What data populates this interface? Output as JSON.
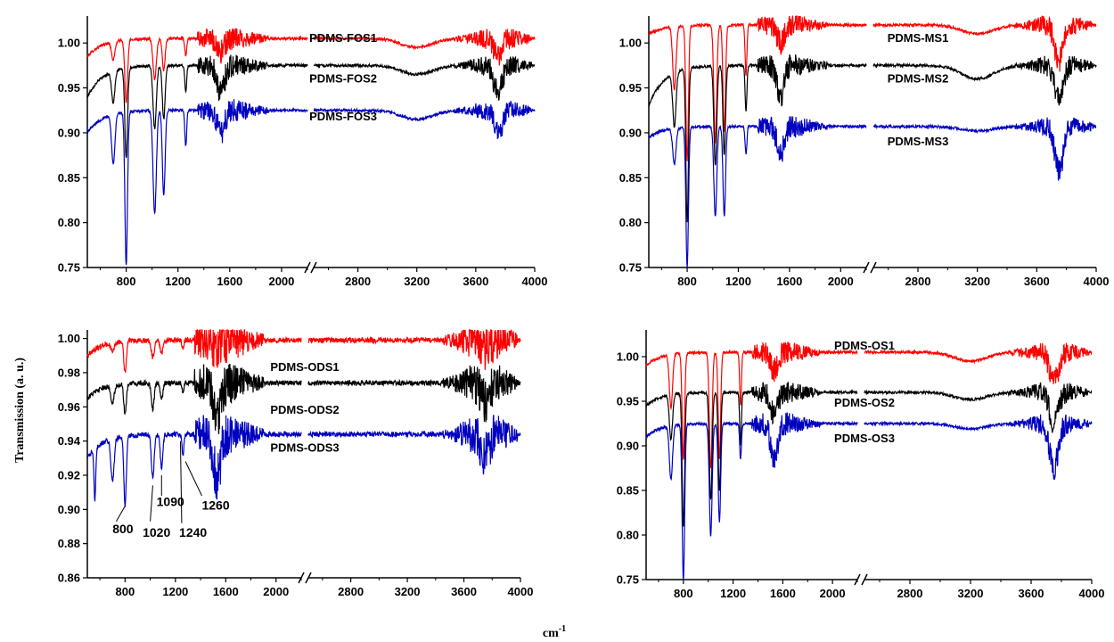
{
  "figure": {
    "ylabel": "Transmission (a. u.)",
    "xlabel_base": "cm",
    "xlabel_sup": "-1"
  },
  "chart_data": [
    {
      "type": "line",
      "panel": "top-left",
      "xlim": [
        500,
        4000
      ],
      "ylim": [
        0.75,
        1.03
      ],
      "axis_break": [
        2200,
        2500
      ],
      "xticks": [
        800,
        1200,
        1600,
        2000,
        2800,
        3200,
        3600,
        4000
      ],
      "yticks": [
        "0.75",
        "0.80",
        "0.85",
        "0.90",
        "0.95",
        "1.00"
      ],
      "series": [
        {
          "name": "PDMS-FOS1",
          "color": "#ff0000",
          "baseline": 1.005,
          "start": 0.985,
          "shift": 0.0,
          "peaks": [
            [
              700,
              0.02,
              18
            ],
            [
              800,
              0.07,
              15
            ],
            [
              1020,
              0.045,
              18
            ],
            [
              1090,
              0.035,
              15
            ],
            [
              1260,
              0.02,
              10
            ],
            [
              1530,
              0.015,
              40
            ],
            [
              3200,
              0.01,
              150
            ],
            [
              3750,
              0.02,
              40
            ]
          ]
        },
        {
          "name": "PDMS-FOS2",
          "color": "#000000",
          "baseline": 0.975,
          "start": 0.94,
          "shift": 0.0,
          "peaks": [
            [
              700,
              0.035,
              18
            ],
            [
              800,
              0.1,
              15
            ],
            [
              1020,
              0.07,
              18
            ],
            [
              1090,
              0.06,
              15
            ],
            [
              1260,
              0.03,
              10
            ],
            [
              1530,
              0.03,
              40
            ],
            [
              3200,
              0.01,
              150
            ],
            [
              3750,
              0.03,
              40
            ]
          ]
        },
        {
          "name": "PDMS-FOS3",
          "color": "#0000c0",
          "baseline": 0.925,
          "start": 0.9,
          "shift": 0.0,
          "peaks": [
            [
              700,
              0.055,
              18
            ],
            [
              800,
              0.17,
              14
            ],
            [
              1020,
              0.115,
              18
            ],
            [
              1090,
              0.095,
              15
            ],
            [
              1260,
              0.04,
              10
            ],
            [
              1530,
              0.025,
              40
            ],
            [
              3200,
              0.01,
              150
            ],
            [
              3750,
              0.025,
              40
            ]
          ]
        }
      ],
      "labels": [
        {
          "text": "PDMS-FOS1",
          "x": 2700,
          "y": 1.005
        },
        {
          "text": "PDMS-FOS2",
          "x": 2700,
          "y": 0.96
        },
        {
          "text": "PDMS-FOS3",
          "x": 2700,
          "y": 0.918
        }
      ]
    },
    {
      "type": "line",
      "panel": "top-right",
      "xlim": [
        500,
        4000
      ],
      "ylim": [
        0.75,
        1.03
      ],
      "axis_break": [
        2200,
        2500
      ],
      "xticks": [
        800,
        1200,
        1600,
        2000,
        2800,
        3200,
        3600,
        4000
      ],
      "yticks": [
        "0.75",
        "0.80",
        "0.85",
        "0.90",
        "0.95",
        "1.00"
      ],
      "series": [
        {
          "name": "PDMS-MS1",
          "color": "#ff0000",
          "baseline": 1.02,
          "start": 1.01,
          "shift": 0.0,
          "peaks": [
            [
              700,
              0.07,
              18
            ],
            [
              800,
              0.15,
              14
            ],
            [
              1020,
              0.13,
              16
            ],
            [
              1090,
              0.12,
              14
            ],
            [
              1260,
              0.055,
              10
            ],
            [
              1530,
              0.02,
              40
            ],
            [
              3200,
              0.01,
              150
            ],
            [
              3750,
              0.04,
              40
            ]
          ]
        },
        {
          "name": "PDMS-MS2",
          "color": "#000000",
          "baseline": 0.975,
          "start": 0.93,
          "shift": 0.0,
          "peaks": [
            [
              700,
              0.06,
              18
            ],
            [
              800,
              0.17,
              14
            ],
            [
              1020,
              0.11,
              16
            ],
            [
              1090,
              0.1,
              14
            ],
            [
              1260,
              0.05,
              10
            ],
            [
              1530,
              0.035,
              40
            ],
            [
              3200,
              0.015,
              150
            ],
            [
              3750,
              0.035,
              40
            ]
          ]
        },
        {
          "name": "PDMS-MS3",
          "color": "#0000c0",
          "baseline": 0.907,
          "start": 0.895,
          "shift": 0.0,
          "peaks": [
            [
              700,
              0.04,
              18
            ],
            [
              800,
              0.155,
              14
            ],
            [
              1020,
              0.1,
              16
            ],
            [
              1090,
              0.1,
              14
            ],
            [
              1260,
              0.03,
              10
            ],
            [
              1530,
              0.03,
              40
            ],
            [
              3200,
              0.005,
              150
            ],
            [
              3750,
              0.05,
              40
            ]
          ]
        }
      ],
      "labels": [
        {
          "text": "PDMS-MS1",
          "x": 2800,
          "y": 1.005
        },
        {
          "text": "PDMS-MS2",
          "x": 2800,
          "y": 0.96
        },
        {
          "text": "PDMS-MS3",
          "x": 2800,
          "y": 0.89
        }
      ]
    },
    {
      "type": "line",
      "panel": "bottom-left",
      "xlim": [
        500,
        4000
      ],
      "ylim": [
        0.86,
        1.005
      ],
      "axis_break": [
        2200,
        2500
      ],
      "xticks": [
        800,
        1200,
        1600,
        2000,
        2800,
        3200,
        3600,
        4000
      ],
      "yticks": [
        "0.86",
        "0.88",
        "0.90",
        "0.92",
        "0.94",
        "0.96",
        "0.98",
        "1.00"
      ],
      "series": [
        {
          "name": "PDMS-ODS1",
          "color": "#ff0000",
          "baseline": 0.999,
          "start": 0.99,
          "shift": 0.0,
          "peaks": [
            [
              700,
              0.005,
              18
            ],
            [
              800,
              0.018,
              14
            ],
            [
              1020,
              0.01,
              16
            ],
            [
              1090,
              0.008,
              14
            ],
            [
              1260,
              0.005,
              10
            ],
            [
              1530,
              0.003,
              40
            ],
            [
              3750,
              0.004,
              40
            ]
          ]
        },
        {
          "name": "PDMS-ODS2",
          "color": "#000000",
          "baseline": 0.974,
          "start": 0.965,
          "shift": 0.0,
          "peaks": [
            [
              700,
              0.01,
              18
            ],
            [
              800,
              0.018,
              14
            ],
            [
              1020,
              0.015,
              16
            ],
            [
              1090,
              0.01,
              14
            ],
            [
              1260,
              0.005,
              10
            ],
            [
              1530,
              0.02,
              40
            ],
            [
              3750,
              0.01,
              40
            ]
          ]
        },
        {
          "name": "PDMS-ODS3",
          "color": "#0000c0",
          "baseline": 0.944,
          "start": 0.93,
          "shift": 0.0,
          "peaks": [
            [
              560,
              0.03,
              10
            ],
            [
              700,
              0.025,
              18
            ],
            [
              800,
              0.04,
              14
            ],
            [
              1020,
              0.025,
              16
            ],
            [
              1090,
              0.02,
              14
            ],
            [
              1260,
              0.012,
              10
            ],
            [
              1530,
              0.025,
              40
            ],
            [
              3750,
              0.012,
              40
            ]
          ]
        }
      ],
      "labels": [
        {
          "text": "PDMS-ODS1",
          "x": 2450,
          "y": 0.983
        },
        {
          "text": "PDMS-ODS2",
          "x": 2450,
          "y": 0.958
        },
        {
          "text": "PDMS-ODS3",
          "x": 2450,
          "y": 0.936
        }
      ],
      "annotations": [
        {
          "text": "800",
          "from": [
            800,
            0.902
          ],
          "to": [
            730,
            0.893
          ],
          "tx": 700,
          "ty": 0.886
        },
        {
          "text": "1020",
          "from": [
            1020,
            0.914
          ],
          "to": [
            1000,
            0.893
          ],
          "tx": 940,
          "ty": 0.884
        },
        {
          "text": "1090",
          "from": [
            1090,
            0.92
          ],
          "to": [
            1090,
            0.908
          ],
          "tx": 1050,
          "ty": 0.902
        },
        {
          "text": "1240",
          "from": [
            1240,
            0.94
          ],
          "to": [
            1250,
            0.892
          ],
          "tx": 1230,
          "ty": 0.884
        },
        {
          "text": "1260",
          "from": [
            1280,
            0.928
          ],
          "to": [
            1410,
            0.908
          ],
          "tx": 1410,
          "ty": 0.9
        }
      ]
    },
    {
      "type": "line",
      "panel": "bottom-right",
      "xlim": [
        500,
        4000
      ],
      "ylim": [
        0.75,
        1.03
      ],
      "axis_break": [
        2200,
        2500
      ],
      "xticks": [
        800,
        1200,
        1600,
        2000,
        2800,
        3200,
        3600,
        4000
      ],
      "yticks": [
        "0.75",
        "0.80",
        "0.85",
        "0.90",
        "0.95",
        "1.00"
      ],
      "series": [
        {
          "name": "PDMS-OS1",
          "color": "#ff0000",
          "baseline": 1.005,
          "start": 0.99,
          "shift": 0.0,
          "peaks": [
            [
              700,
              0.06,
              18
            ],
            [
              800,
              0.12,
              14
            ],
            [
              1020,
              0.13,
              16
            ],
            [
              1090,
              0.12,
              14
            ],
            [
              1260,
              0.06,
              10
            ],
            [
              1530,
              0.02,
              40
            ],
            [
              3200,
              0.01,
              150
            ],
            [
              3750,
              0.035,
              40
            ]
          ]
        },
        {
          "name": "PDMS-OS2",
          "color": "#000000",
          "baseline": 0.96,
          "start": 0.945,
          "shift": 0.0,
          "peaks": [
            [
              700,
              0.05,
              18
            ],
            [
              800,
              0.15,
              14
            ],
            [
              1020,
              0.12,
              16
            ],
            [
              1090,
              0.11,
              14
            ],
            [
              1260,
              0.06,
              10
            ],
            [
              1530,
              0.025,
              40
            ],
            [
              3200,
              0.008,
              150
            ],
            [
              3750,
              0.035,
              40
            ]
          ]
        },
        {
          "name": "PDMS-OS3",
          "color": "#0000c0",
          "baseline": 0.925,
          "start": 0.91,
          "shift": 0.0,
          "peaks": [
            [
              700,
              0.06,
              18
            ],
            [
              800,
              0.175,
              14
            ],
            [
              1020,
              0.125,
              16
            ],
            [
              1090,
              0.11,
              14
            ],
            [
              1260,
              0.04,
              10
            ],
            [
              1530,
              0.04,
              40
            ],
            [
              3200,
              0.006,
              150
            ],
            [
              3750,
              0.05,
              40
            ]
          ]
        }
      ],
      "labels": [
        {
          "text": "PDMS-OS1",
          "x": 2500,
          "y": 1.012
        },
        {
          "text": "PDMS-OS2",
          "x": 2500,
          "y": 0.948
        },
        {
          "text": "PDMS-OS3",
          "x": 2500,
          "y": 0.908
        }
      ]
    }
  ]
}
